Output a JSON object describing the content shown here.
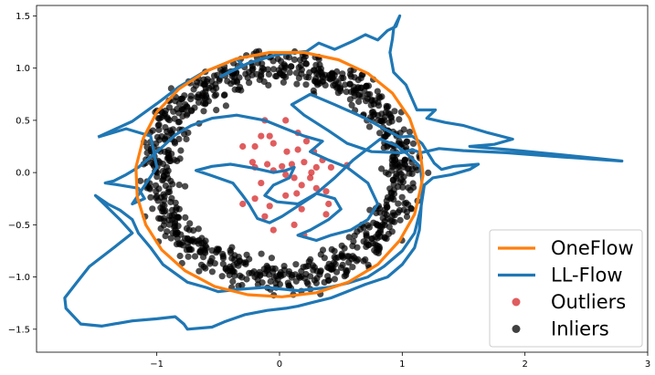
{
  "chart_data": {
    "type": "scatter",
    "title": "",
    "xlabel": "",
    "ylabel": "",
    "xlim": [
      -1.98,
      3.0
    ],
    "ylim": [
      -1.72,
      1.6
    ],
    "grid": false,
    "legend_placement": "bottom-right",
    "x_ticks": [
      -1,
      0,
      1,
      2,
      3
    ],
    "y_ticks": [
      -1.5,
      -1.0,
      -0.5,
      0.0,
      0.5,
      1.0,
      1.5
    ],
    "x_tick_labels": [
      "−1",
      "0",
      "1",
      "2",
      "3"
    ],
    "y_tick_labels": [
      "−1.5",
      "−1.0",
      "−0.5",
      "0.0",
      "0.5",
      "1.0",
      "1.5"
    ],
    "colors": {
      "oneflow": "#ff7f0e",
      "llflow": "#1f77b4",
      "outliers": "#d62728",
      "inliers": "#000000"
    },
    "series": [
      {
        "name": "OneFlow",
        "kind": "line",
        "description": "closed near-circular boundary",
        "center": [
          0.0,
          -0.02
        ],
        "radius": [
          1.17,
          1.17
        ],
        "points": [
          [
            1.17,
            -0.02
          ],
          [
            1.14,
            0.25
          ],
          [
            1.06,
            0.52
          ],
          [
            0.92,
            0.76
          ],
          [
            0.72,
            0.95
          ],
          [
            0.48,
            1.08
          ],
          [
            0.2,
            1.15
          ],
          [
            -0.08,
            1.15
          ],
          [
            -0.35,
            1.09
          ],
          [
            -0.6,
            0.97
          ],
          [
            -0.82,
            0.8
          ],
          [
            -1.0,
            0.58
          ],
          [
            -1.11,
            0.33
          ],
          [
            -1.17,
            0.05
          ],
          [
            -1.16,
            -0.23
          ],
          [
            -1.09,
            -0.5
          ],
          [
            -0.96,
            -0.74
          ],
          [
            -0.77,
            -0.94
          ],
          [
            -0.53,
            -1.09
          ],
          [
            -0.26,
            -1.17
          ],
          [
            0.02,
            -1.19
          ],
          [
            0.3,
            -1.15
          ],
          [
            0.56,
            -1.05
          ],
          [
            0.8,
            -0.88
          ],
          [
            0.98,
            -0.65
          ],
          [
            1.1,
            -0.4
          ],
          [
            1.15,
            -0.15
          ],
          [
            1.17,
            -0.02
          ]
        ]
      },
      {
        "name": "LL-Flow",
        "kind": "line",
        "description": "irregular boundary with long spikes to the right and lower-left",
        "points": [
          [
            -1.48,
            0.34
          ],
          [
            -1.2,
            0.49
          ],
          [
            -1.0,
            0.66
          ],
          [
            -0.82,
            0.82
          ],
          [
            -0.62,
            0.96
          ],
          [
            -0.35,
            1.09
          ],
          [
            -0.3,
            1.03
          ],
          [
            -0.48,
            0.92
          ],
          [
            -0.25,
            1.05
          ],
          [
            -0.02,
            1.13
          ],
          [
            0.22,
            1.16
          ],
          [
            0.32,
            1.24
          ],
          [
            0.45,
            1.18
          ],
          [
            0.6,
            1.26
          ],
          [
            0.7,
            1.32
          ],
          [
            0.8,
            1.27
          ],
          [
            0.88,
            1.36
          ],
          [
            0.95,
            1.4
          ],
          [
            0.98,
            1.5
          ],
          [
            0.93,
            1.38
          ],
          [
            0.92,
            1.28
          ],
          [
            0.9,
            1.15
          ],
          [
            0.93,
            0.96
          ],
          [
            1.03,
            0.84
          ],
          [
            1.12,
            0.6
          ],
          [
            1.27,
            0.6
          ],
          [
            1.2,
            0.52
          ],
          [
            1.35,
            0.48
          ],
          [
            1.5,
            0.45
          ],
          [
            1.7,
            0.38
          ],
          [
            1.9,
            0.32
          ],
          [
            1.75,
            0.27
          ],
          [
            1.55,
            0.25
          ],
          [
            1.86,
            0.22
          ],
          [
            2.3,
            0.17
          ],
          [
            2.79,
            0.11
          ],
          [
            2.3,
            0.15
          ],
          [
            1.85,
            0.19
          ],
          [
            1.5,
            0.21
          ],
          [
            1.3,
            0.23
          ],
          [
            1.15,
            0.19
          ],
          [
            1.08,
            0.22
          ],
          [
            0.99,
            0.19
          ],
          [
            0.75,
            0.2
          ],
          [
            0.55,
            0.28
          ],
          [
            0.4,
            0.4
          ],
          [
            0.2,
            0.55
          ],
          [
            0.1,
            0.65
          ],
          [
            0.25,
            0.75
          ],
          [
            0.45,
            0.65
          ],
          [
            0.7,
            0.52
          ],
          [
            0.85,
            0.42
          ],
          [
            0.98,
            0.34
          ],
          [
            1.08,
            0.35
          ],
          [
            1.16,
            0.28
          ],
          [
            1.26,
            0.09
          ],
          [
            1.32,
            0.03
          ],
          [
            1.42,
            0.06
          ],
          [
            1.62,
            0.08
          ],
          [
            1.55,
            0.03
          ],
          [
            1.4,
            -0.02
          ],
          [
            1.25,
            -0.05
          ],
          [
            1.18,
            -0.12
          ],
          [
            1.15,
            -0.35
          ],
          [
            1.1,
            -0.58
          ],
          [
            1.0,
            -0.75
          ],
          [
            0.85,
            -0.9
          ],
          [
            0.72,
            -1.0
          ],
          [
            0.55,
            -1.06
          ],
          [
            0.4,
            -1.1
          ],
          [
            0.15,
            -1.13
          ],
          [
            -0.12,
            -1.1
          ],
          [
            -0.35,
            -1.12
          ],
          [
            -0.5,
            -1.14
          ],
          [
            -0.6,
            -1.1
          ],
          [
            -0.75,
            -1.05
          ],
          [
            -0.95,
            -0.88
          ],
          [
            -1.05,
            -0.72
          ],
          [
            -1.15,
            -0.58
          ],
          [
            -1.2,
            -0.45
          ],
          [
            -1.3,
            -0.36
          ],
          [
            -1.4,
            -0.3
          ],
          [
            -1.5,
            -0.22
          ],
          [
            -1.3,
            -0.45
          ],
          [
            -1.2,
            -0.58
          ],
          [
            -1.35,
            -0.72
          ],
          [
            -1.55,
            -0.9
          ],
          [
            -1.65,
            -1.05
          ],
          [
            -1.75,
            -1.2
          ],
          [
            -1.74,
            -1.3
          ],
          [
            -1.62,
            -1.45
          ],
          [
            -1.45,
            -1.47
          ],
          [
            -1.2,
            -1.42
          ],
          [
            -1.0,
            -1.4
          ],
          [
            -0.85,
            -1.38
          ],
          [
            -0.78,
            -1.45
          ],
          [
            -0.75,
            -1.5
          ],
          [
            -0.55,
            -1.48
          ],
          [
            -0.45,
            -1.43
          ],
          [
            -0.28,
            -1.36
          ],
          [
            -0.1,
            -1.32
          ],
          [
            0.05,
            -1.3
          ],
          [
            0.15,
            -1.28
          ],
          [
            0.28,
            -1.24
          ],
          [
            0.42,
            -1.2
          ],
          [
            0.55,
            -1.14
          ],
          [
            0.7,
            -1.07
          ],
          [
            0.88,
            -1.0
          ],
          [
            1.0,
            -0.88
          ],
          [
            1.1,
            -0.72
          ],
          [
            1.14,
            -0.55
          ],
          [
            1.15,
            -0.4
          ],
          [
            1.16,
            -0.22
          ],
          [
            1.16,
            -0.1
          ],
          [
            1.15,
            0.05
          ],
          [
            1.04,
            0.18
          ],
          [
            0.95,
            0.26
          ],
          [
            0.82,
            0.32
          ],
          [
            0.6,
            0.12
          ],
          [
            0.45,
            -0.05
          ],
          [
            0.28,
            -0.22
          ],
          [
            0.15,
            -0.32
          ],
          [
            0.02,
            -0.42
          ],
          [
            -0.08,
            -0.48
          ],
          [
            -0.18,
            -0.44
          ],
          [
            -0.25,
            -0.3
          ],
          [
            -0.3,
            -0.22
          ],
          [
            -0.38,
            -0.1
          ],
          [
            -0.55,
            -0.03
          ],
          [
            -0.68,
            0.02
          ],
          [
            -0.55,
            0.06
          ],
          [
            -0.4,
            0.08
          ],
          [
            -0.2,
            0.04
          ],
          [
            -0.05,
            0.0
          ],
          [
            0.05,
            0.02
          ],
          [
            0.12,
            0.05
          ],
          [
            0.08,
            -0.05
          ],
          [
            -0.05,
            -0.12
          ],
          [
            -0.12,
            -0.22
          ],
          [
            -0.02,
            -0.28
          ],
          [
            0.15,
            -0.3
          ],
          [
            0.3,
            -0.2
          ],
          [
            0.45,
            -0.25
          ],
          [
            0.5,
            -0.35
          ],
          [
            0.4,
            -0.45
          ],
          [
            0.25,
            -0.55
          ],
          [
            0.15,
            -0.6
          ],
          [
            0.3,
            -0.65
          ],
          [
            0.42,
            -0.6
          ],
          [
            0.58,
            -0.55
          ],
          [
            0.72,
            -0.45
          ],
          [
            0.8,
            -0.3
          ],
          [
            0.72,
            -0.1
          ],
          [
            0.55,
            0.05
          ],
          [
            0.4,
            0.12
          ],
          [
            0.25,
            0.2
          ],
          [
            0.35,
            0.3
          ],
          [
            0.2,
            0.35
          ],
          [
            0.05,
            0.42
          ],
          [
            -0.12,
            0.5
          ],
          [
            -0.35,
            0.55
          ],
          [
            -0.55,
            0.52
          ],
          [
            -0.72,
            0.45
          ],
          [
            -0.85,
            0.36
          ],
          [
            -0.95,
            0.25
          ],
          [
            -1.05,
            0.15
          ],
          [
            -1.15,
            0.05
          ],
          [
            -1.25,
            -0.02
          ],
          [
            -1.35,
            -0.08
          ],
          [
            -1.42,
            -0.1
          ],
          [
            -1.3,
            -0.12
          ],
          [
            -1.15,
            -0.15
          ],
          [
            -1.1,
            -0.25
          ],
          [
            -1.2,
            -0.3
          ],
          [
            -1.0,
            0.05
          ],
          [
            -1.05,
            0.35
          ],
          [
            -1.25,
            0.42
          ],
          [
            -1.48,
            0.34
          ]
        ]
      },
      {
        "name": "Outliers",
        "kind": "scatter",
        "points": [
          [
            0.05,
            0.5
          ],
          [
            -0.12,
            0.5
          ],
          [
            0.15,
            0.38
          ],
          [
            -0.08,
            0.35
          ],
          [
            -0.15,
            0.35
          ],
          [
            0.22,
            0.3
          ],
          [
            -0.3,
            0.25
          ],
          [
            -0.2,
            0.25
          ],
          [
            -0.05,
            0.28
          ],
          [
            0.06,
            0.2
          ],
          [
            0.15,
            0.22
          ],
          [
            0.28,
            0.2
          ],
          [
            0.35,
            0.12
          ],
          [
            -0.22,
            0.1
          ],
          [
            -0.1,
            0.08
          ],
          [
            0.02,
            0.06
          ],
          [
            0.1,
            0.08
          ],
          [
            0.2,
            0.1
          ],
          [
            0.26,
            0.0
          ],
          [
            0.42,
            0.05
          ],
          [
            0.55,
            0.07
          ],
          [
            -0.05,
            0.02
          ],
          [
            0.05,
            -0.02
          ],
          [
            0.12,
            -0.05
          ],
          [
            -0.15,
            -0.1
          ],
          [
            0.18,
            -0.12
          ],
          [
            0.3,
            -0.15
          ],
          [
            0.38,
            -0.18
          ],
          [
            -0.2,
            -0.25
          ],
          [
            0.05,
            -0.22
          ],
          [
            0.14,
            -0.2
          ],
          [
            0.4,
            -0.3
          ],
          [
            -0.3,
            -0.3
          ],
          [
            -0.12,
            -0.42
          ],
          [
            0.18,
            -0.35
          ],
          [
            0.38,
            -0.4
          ],
          [
            0.12,
            -0.5
          ],
          [
            -0.05,
            -0.55
          ],
          [
            0.2,
            -0.6
          ],
          [
            -0.2,
            0.05
          ],
          [
            0.25,
            -0.05
          ],
          [
            0.3,
            0.05
          ],
          [
            -0.08,
            -0.32
          ]
        ]
      },
      {
        "name": "Inliers",
        "kind": "scatter",
        "description": "noisy ring of about 900 points, radius about 1.0 (0.82 to 1.18), centered near the origin",
        "ring_center": [
          0.0,
          0.0
        ],
        "ring_radius": [
          0.82,
          1.18
        ],
        "count": 900
      }
    ]
  }
}
